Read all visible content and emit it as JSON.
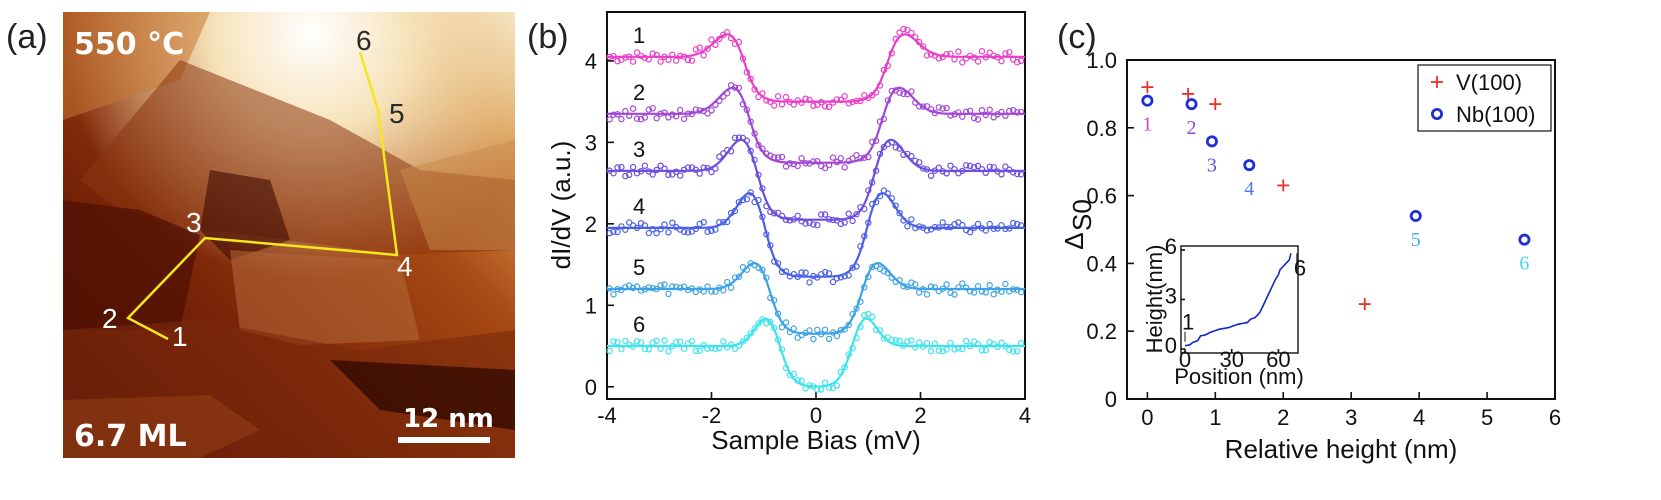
{
  "panels": {
    "a": "(a)",
    "b": "(b)",
    "c": "(c)"
  },
  "stm": {
    "temperature": "550 °C",
    "coverage": "6.7 ML",
    "scalebar": "12 nm",
    "path_labels": [
      "1",
      "2",
      "3",
      "4",
      "5",
      "6"
    ]
  },
  "chart_data": [
    {
      "type": "line",
      "panel": "b",
      "xlabel": "Sample Bias (mV)",
      "ylabel": "dI/dV (a.u.)",
      "xlim": [
        -4,
        4
      ],
      "ylim": [
        0,
        4.5
      ],
      "xticks": [
        -4,
        -2,
        0,
        2,
        4
      ],
      "yticks": [
        0,
        1,
        2,
        3,
        4
      ],
      "series": [
        {
          "name": "1",
          "offset": 4.05,
          "zero_depth": 0.55,
          "peak_pos": 1.6,
          "peak_height": 0.33,
          "width": 0.45,
          "color": "#e83fc8"
        },
        {
          "name": "2",
          "offset": 3.35,
          "zero_depth": 0.6,
          "peak_pos": 1.5,
          "peak_height": 0.38,
          "width": 0.45,
          "color": "#a347d6"
        },
        {
          "name": "3",
          "offset": 2.65,
          "zero_depth": 0.6,
          "peak_pos": 1.35,
          "peak_height": 0.45,
          "width": 0.42,
          "color": "#6a4fe0"
        },
        {
          "name": "4",
          "offset": 1.95,
          "zero_depth": 0.6,
          "peak_pos": 1.2,
          "peak_height": 0.5,
          "width": 0.4,
          "color": "#4b60e6"
        },
        {
          "name": "5",
          "offset": 1.2,
          "zero_depth": 0.55,
          "peak_pos": 1.1,
          "peak_height": 0.38,
          "width": 0.4,
          "color": "#3ea3e6"
        },
        {
          "name": "6",
          "offset": 0.5,
          "zero_depth": 0.5,
          "peak_pos": 0.9,
          "peak_height": 0.4,
          "width": 0.35,
          "color": "#3fe3ee"
        }
      ]
    },
    {
      "type": "scatter",
      "panel": "c",
      "xlabel": "Relative height (nm)",
      "ylabel": "Δ",
      "ylabel_subscript": "S0",
      "xlim": [
        -0.3,
        6
      ],
      "ylim": [
        0,
        1.0
      ],
      "xticks": [
        0,
        1,
        2,
        3,
        4,
        5,
        6
      ],
      "yticks": [
        0,
        0.2,
        0.4,
        0.6,
        0.8,
        1.0
      ],
      "ytick_labels": [
        "0",
        "0.2",
        "0.4",
        "0.6",
        "0.8",
        "1.0"
      ],
      "legend_position": "top-right",
      "series": [
        {
          "name": "V(100)",
          "marker": "plus",
          "color": "#e8312a",
          "points": [
            [
              0.0,
              0.92
            ],
            [
              0.6,
              0.9
            ],
            [
              1.0,
              0.87
            ],
            [
              2.0,
              0.63
            ],
            [
              3.2,
              0.28
            ]
          ]
        },
        {
          "name": "Nb(100)",
          "marker": "circle",
          "color": "#1f2fd6",
          "points": [
            [
              0.0,
              0.88
            ],
            [
              0.65,
              0.87
            ],
            [
              0.95,
              0.76
            ],
            [
              1.5,
              0.69
            ],
            [
              3.95,
              0.54
            ],
            [
              5.55,
              0.47
            ]
          ]
        }
      ],
      "point_labels": [
        {
          "text": "1",
          "x": 0.0,
          "y": 0.88,
          "color": "#e040c0"
        },
        {
          "text": "2",
          "x": 0.65,
          "y": 0.87,
          "color": "#9a45d4"
        },
        {
          "text": "3",
          "x": 0.95,
          "y": 0.76,
          "color": "#5a55de"
        },
        {
          "text": "4",
          "x": 1.5,
          "y": 0.69,
          "color": "#4a78e4"
        },
        {
          "text": "5",
          "x": 3.95,
          "y": 0.54,
          "color": "#3cb4e6"
        },
        {
          "text": "6",
          "x": 5.55,
          "y": 0.47,
          "color": "#3fd8ea"
        }
      ],
      "inset": {
        "type": "line",
        "xlabel": "Position (nm)",
        "ylabel": "Height(nm)",
        "xlim": [
          0,
          70
        ],
        "ylim": [
          0,
          6
        ],
        "xticks": [
          0,
          30,
          60
        ],
        "yticks": [
          0,
          3,
          6
        ],
        "annotations": [
          "1",
          "6"
        ],
        "color": "#1226c8",
        "x": [
          0,
          3,
          5,
          8,
          10,
          13,
          16,
          19,
          22,
          25,
          28,
          31,
          34,
          37,
          40,
          42,
          45,
          48,
          50,
          52,
          54,
          56,
          58,
          60,
          61,
          63,
          65,
          67,
          68
        ],
        "y": [
          0.2,
          0.25,
          0.4,
          0.5,
          0.8,
          0.85,
          1.0,
          1.1,
          1.2,
          1.25,
          1.3,
          1.4,
          1.5,
          1.55,
          1.6,
          1.8,
          1.9,
          2.2,
          2.6,
          3.0,
          3.4,
          3.8,
          4.2,
          4.5,
          4.8,
          5.0,
          5.2,
          5.4,
          5.8
        ]
      }
    }
  ]
}
